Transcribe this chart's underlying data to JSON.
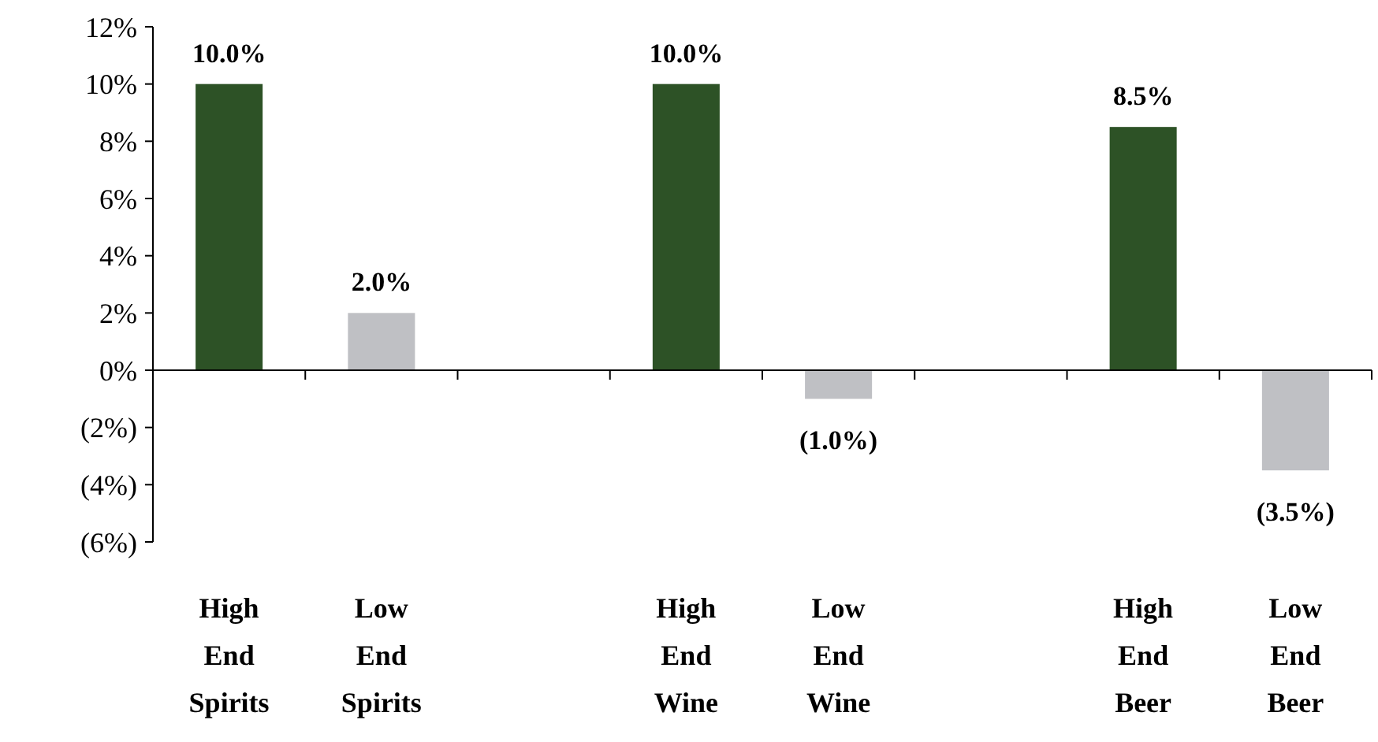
{
  "chart_data": {
    "type": "bar",
    "categories": [
      "High End Spirits",
      "Low End Spirits",
      null,
      "High End Wine",
      "Low End Wine",
      null,
      "High End Beer",
      "Low End Beer"
    ],
    "values": [
      10.0,
      2.0,
      null,
      10.0,
      -1.0,
      null,
      8.5,
      -3.5
    ],
    "colors": [
      "#2d5226",
      "#bfc0c4",
      null,
      "#2d5226",
      "#bfc0c4",
      null,
      "#2d5226",
      "#bfc0c4"
    ],
    "value_labels": [
      "10.0%",
      "2.0%",
      null,
      "10.0%",
      "(1.0%)",
      null,
      "8.5%",
      "(3.5%)"
    ],
    "ylim": [
      -6,
      12
    ],
    "yticks": [
      {
        "value": -6,
        "label": "(6%)"
      },
      {
        "value": -4,
        "label": "(4%)"
      },
      {
        "value": -2,
        "label": "(2%)"
      },
      {
        "value": 0,
        "label": "0%"
      },
      {
        "value": 2,
        "label": "2%"
      },
      {
        "value": 4,
        "label": "4%"
      },
      {
        "value": 6,
        "label": "6%"
      },
      {
        "value": 8,
        "label": "8%"
      },
      {
        "value": 10,
        "label": "10%"
      },
      {
        "value": 12,
        "label": "12%"
      }
    ],
    "orientation": "vertical"
  }
}
